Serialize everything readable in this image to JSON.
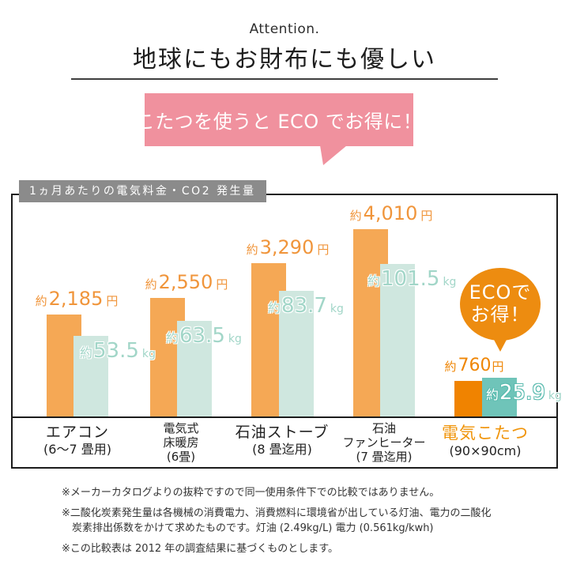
{
  "page": {
    "attention": "Attention.",
    "title": "地球にもお財布にも優しい",
    "bubble_text": "こたつを使うと ECO でお得に！"
  },
  "eco_badge": {
    "line1": "ECOで",
    "line2": "お得！"
  },
  "colors": {
    "pink_bubble": "#f0919e",
    "gray_badge": "#8b8b8b",
    "light_orange_bar": "#f5a855",
    "strong_orange_bar": "#f08300",
    "light_teal_bar": "#cfe7df",
    "strong_teal_bar": "#6fc4b9",
    "price_text": "#f0953b",
    "co2_text": "#a2d6c8",
    "eco_badge_orange": "#ed8c10"
  },
  "chart_data": {
    "type": "bar",
    "title": "1ヵ月あたりの電気料金・CO2 発生量",
    "subtitle": "",
    "xlabel": "",
    "ylabel": "",
    "grid": false,
    "legend_position": "none",
    "axes_visible": false,
    "series": [
      {
        "name": "電気料金",
        "unit": "円",
        "ylim": [
          0,
          4500
        ]
      },
      {
        "name": "CO2 発生量",
        "unit": "kg",
        "ylim": [
          0,
          110
        ]
      }
    ],
    "items": [
      {
        "category_lines": [
          "エアコン",
          "(6〜7 畳用)"
        ],
        "layout": "two",
        "highlight": false,
        "price_yen": 2185,
        "price_display": {
          "approx": "約",
          "value": "2,185",
          "unit": "円"
        },
        "co2_kg": 53.5,
        "co2_display": {
          "approx": "約",
          "value": "53.5",
          "unit": "kg"
        }
      },
      {
        "category_lines": [
          "電気式",
          "床暖房",
          "(6畳)"
        ],
        "layout": "three",
        "highlight": false,
        "price_yen": 2550,
        "price_display": {
          "approx": "約",
          "value": "2,550",
          "unit": "円"
        },
        "co2_kg": 63.5,
        "co2_display": {
          "approx": "約",
          "value": "63.5",
          "unit": "kg"
        }
      },
      {
        "category_lines": [
          "石油ストーブ",
          "(8 畳迄用)"
        ],
        "layout": "two",
        "highlight": false,
        "price_yen": 3290,
        "price_display": {
          "approx": "約",
          "value": "3,290",
          "unit": "円"
        },
        "co2_kg": 83.7,
        "co2_display": {
          "approx": "約",
          "value": "83.7",
          "unit": "kg"
        }
      },
      {
        "category_lines": [
          "石油",
          "ファンヒーター",
          "(7 畳迄用)"
        ],
        "layout": "three",
        "highlight": false,
        "price_yen": 4010,
        "price_display": {
          "approx": "約",
          "value": "4,010",
          "unit": "円"
        },
        "co2_kg": 101.5,
        "co2_display": {
          "approx": "約",
          "value": "101.5",
          "unit": "kg"
        }
      },
      {
        "category_lines": [
          "電気こたつ",
          "(90×90cm)"
        ],
        "layout": "two",
        "highlight": true,
        "price_yen": 760,
        "price_display": {
          "approx": "約",
          "value": "760",
          "unit": "円"
        },
        "co2_kg": 25.9,
        "co2_display": {
          "approx": "約",
          "value": "25.9",
          "unit": "kg"
        }
      }
    ]
  },
  "footnotes": {
    "line1": "※メーカーカタログよりの抜粋ですので同一使用条件下での比較ではありません。",
    "line2": "※二酸化炭素発生量は各機械の消費電力、消費燃料に環境省が出している灯油、電力の二酸化\n　炭素排出係数をかけて求めたものです。灯油 (2.49kg/L) 電力 (0.561kg/kwh)",
    "line3": "※この比較表は 2012 年の調査結果に基づくものとします。"
  }
}
